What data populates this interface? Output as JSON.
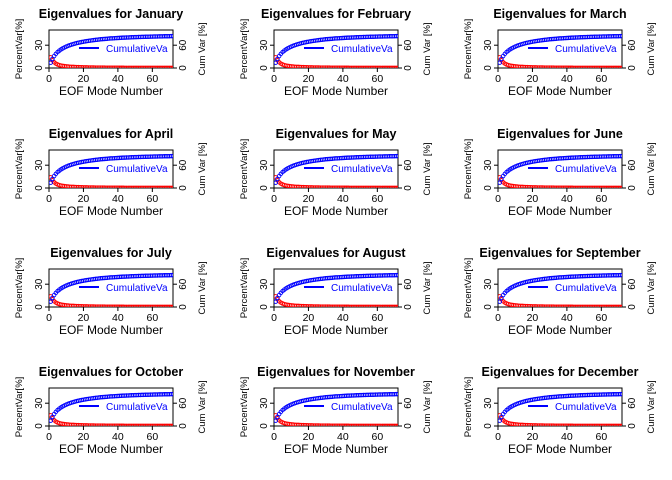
{
  "figure": {
    "panel_titles": [
      "Eigenvalues for January",
      "Eigenvalues for February",
      "Eigenvalues for March",
      "Eigenvalues for April",
      "Eigenvalues for May",
      "Eigenvalues for June",
      "Eigenvalues for July",
      "Eigenvalues for August",
      "Eigenvalues for September",
      "Eigenvalues for October",
      "Eigenvalues for November",
      "Eigenvalues for December"
    ],
    "colors": {
      "percent_series": "#ff0000",
      "cumulative_series": "#0000ff",
      "axis": "#000000"
    }
  },
  "chart_data": {
    "type": "scatter",
    "layout": "4x3 grid of identical panels",
    "xlabel": "EOF Mode Number",
    "ylabel_left": "PercentVar[%]",
    "ylabel_right": "Cum Var [%]",
    "xlim": [
      0,
      72
    ],
    "xticks": [
      0,
      20,
      40,
      60
    ],
    "ylim_left": [
      0,
      50
    ],
    "yticks_left": [
      0,
      30
    ],
    "ylim_right": [
      0,
      100
    ],
    "yticks_right": [
      0,
      60
    ],
    "legend": {
      "label": "CumulativeVa",
      "placement": "center-right"
    },
    "n_modes": 72,
    "percent_var": [
      14.0,
      10.0,
      7.5,
      5.8,
      4.6,
      3.8,
      3.2,
      2.8,
      2.4,
      2.1,
      1.9,
      1.7,
      1.55,
      1.4,
      1.3,
      1.2,
      1.1,
      1.02,
      0.95,
      0.88,
      0.82,
      0.77,
      0.72,
      0.67,
      0.63,
      0.59,
      0.56,
      0.53,
      0.5,
      0.47,
      0.45,
      0.42,
      0.4,
      0.38,
      0.36,
      0.34,
      0.33,
      0.31,
      0.3,
      0.28,
      0.27,
      0.26,
      0.25,
      0.24,
      0.23,
      0.22,
      0.21,
      0.2,
      0.19,
      0.19,
      0.18,
      0.17,
      0.17,
      0.16,
      0.15,
      0.15,
      0.14,
      0.14,
      0.13,
      0.13,
      0.12,
      0.12,
      0.11,
      0.11,
      0.11,
      0.1,
      0.1,
      0.1,
      0.09,
      0.09,
      0.09,
      0.08
    ],
    "cumulative_var": [
      14,
      24,
      31.5,
      37.3,
      41.9,
      45.7,
      48.9,
      51.7,
      54.1,
      56.2,
      58.1,
      59.8,
      61.4,
      62.8,
      64.1,
      65.3,
      66.4,
      67.4,
      68.3,
      69.2,
      70,
      70.8,
      71.5,
      72.2,
      72.8,
      73.4,
      74,
      74.5,
      75,
      75.5,
      75.9,
      76.3,
      76.7,
      77.1,
      77.5,
      77.8,
      78.1,
      78.4,
      78.7,
      79,
      79.3,
      79.5,
      79.8,
      80,
      80.2,
      80.4,
      80.6,
      80.8,
      81,
      81.2,
      81.4,
      81.5,
      81.7,
      81.9,
      82,
      82.2,
      82.3,
      82.4,
      82.6,
      82.7,
      82.8,
      82.9,
      83,
      83.1,
      83.2,
      83.3,
      83.4,
      83.5,
      83.6,
      83.7,
      83.8,
      83.9
    ]
  }
}
